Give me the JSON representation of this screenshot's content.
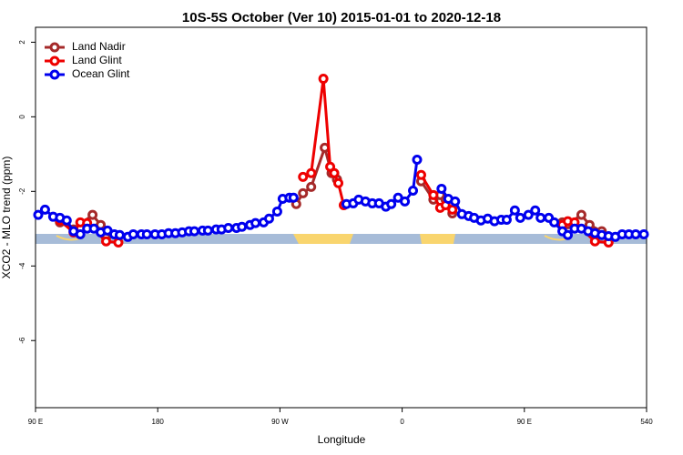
{
  "chart_data": {
    "type": "line",
    "title": "10S-5S October (Ver 10)   2015-01-01 to 2020-12-18",
    "x_label": "Longitude",
    "y_label": "XCO2 - MLO trend (ppm)",
    "xlim": [
      90,
      540
    ],
    "ylim": [
      -7.8,
      2.4
    ],
    "xticks": [
      {
        "value": 90,
        "label": "90 E"
      },
      180,
      {
        "value": 270,
        "label": "90 W"
      },
      {
        "value": 360,
        "label": "0"
      },
      {
        "value": 450,
        "label": "90 E"
      },
      540
    ],
    "yticks": [
      2,
      0,
      -2,
      -4,
      -6
    ],
    "legend": "top-left",
    "series": [
      {
        "name": "Land Nadir",
        "color": "#a52a2a",
        "x": [
          108,
          118,
          132,
          138,
          142,
          null,
          282,
          287,
          293,
          303,
          308,
          312,
          null,
          374,
          383,
          388,
          392,
          397,
          null,
          478,
          482,
          492,
          498,
          507
        ],
        "values": [
          -2.83,
          -3.02,
          -2.63,
          -2.9,
          -3.24,
          null,
          -2.34,
          -2.05,
          -1.88,
          -0.83,
          -1.51,
          -1.68,
          null,
          -1.73,
          -2.22,
          -2.1,
          -2.22,
          -2.59,
          null,
          -2.83,
          -2.88,
          -2.63,
          -2.9,
          -3.07
        ]
      },
      {
        "name": "Land Glint",
        "color": "#ee0000",
        "x": [
          108,
          118,
          123,
          128,
          142,
          151,
          null,
          287,
          293,
          302,
          307,
          310,
          313,
          317,
          null,
          374,
          383,
          388,
          392,
          397,
          null,
          478,
          482,
          487,
          502,
          512
        ],
        "values": [
          -2.78,
          -3.1,
          -2.83,
          -2.85,
          -3.34,
          -3.37,
          null,
          -1.61,
          -1.51,
          1.02,
          -1.34,
          -1.51,
          -1.78,
          -2.37,
          null,
          -1.56,
          -2.1,
          -2.44,
          -2.37,
          -2.49,
          null,
          -2.9,
          -2.8,
          -2.83,
          -3.34,
          -3.37
        ]
      },
      {
        "name": "Ocean Glint",
        "color": "#0000ee",
        "x": [
          92,
          97,
          103,
          108,
          113,
          118,
          123,
          128,
          133,
          138,
          143,
          148,
          152,
          158,
          162,
          168,
          172,
          178,
          183,
          188,
          193,
          198,
          203,
          207,
          213,
          217,
          223,
          227,
          232,
          238,
          242,
          248,
          252,
          258,
          262,
          268,
          272,
          277,
          280,
          null,
          319,
          324,
          328,
          333,
          338,
          343,
          348,
          352,
          357,
          362,
          368,
          371,
          null,
          389,
          394,
          399,
          404,
          409,
          413,
          418,
          423,
          428,
          433,
          437,
          443,
          447,
          453,
          458,
          462,
          468,
          472,
          478,
          482,
          487,
          492,
          497,
          502,
          507,
          512,
          517,
          522,
          527,
          532,
          538
        ],
        "values": [
          -2.63,
          -2.49,
          -2.68,
          -2.71,
          -2.78,
          -3.07,
          -3.15,
          -3.0,
          -3.0,
          -3.1,
          -3.05,
          -3.15,
          -3.17,
          -3.22,
          -3.15,
          -3.15,
          -3.15,
          -3.15,
          -3.15,
          -3.12,
          -3.12,
          -3.1,
          -3.07,
          -3.07,
          -3.05,
          -3.05,
          -3.02,
          -3.02,
          -2.98,
          -2.98,
          -2.95,
          -2.9,
          -2.85,
          -2.83,
          -2.73,
          -2.54,
          -2.2,
          -2.17,
          -2.17,
          null,
          -2.34,
          -2.32,
          -2.22,
          -2.27,
          -2.32,
          -2.32,
          -2.41,
          -2.34,
          -2.17,
          -2.27,
          -1.98,
          -1.15,
          null,
          -1.93,
          -2.2,
          -2.27,
          -2.61,
          -2.66,
          -2.71,
          -2.78,
          -2.73,
          -2.8,
          -2.76,
          -2.76,
          -2.51,
          -2.71,
          -2.63,
          -2.51,
          -2.71,
          -2.71,
          -2.83,
          -3.07,
          -3.17,
          -3.0,
          -3.0,
          -3.07,
          -3.12,
          -3.17,
          -3.2,
          -3.22,
          -3.15,
          -3.15,
          -3.15,
          -3.15
        ]
      }
    ]
  }
}
